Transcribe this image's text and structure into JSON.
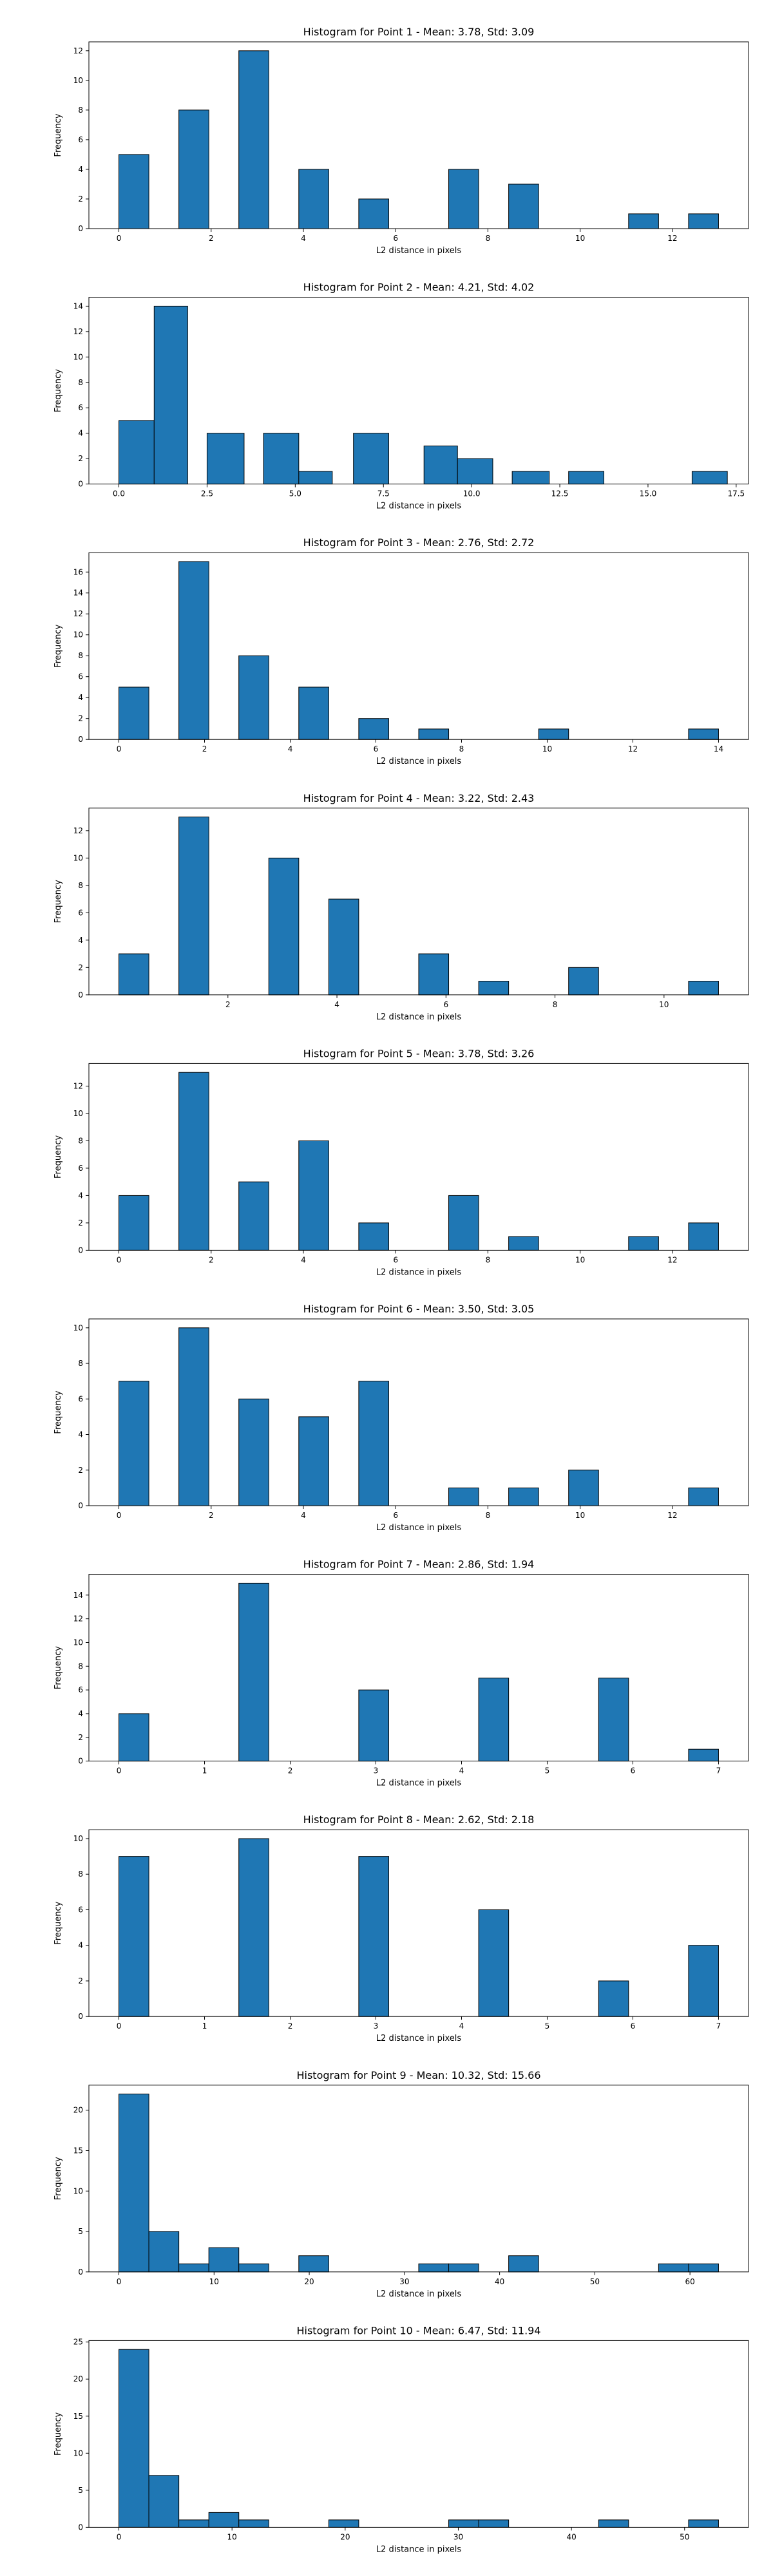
{
  "chart_data": [
    {
      "type": "bar",
      "title": "Histogram for Point 1 - Mean: 3.78, Std: 3.09",
      "xlabel": "L2 distance in pixels",
      "ylabel": "Frequency",
      "xlim": [
        -0.65,
        13.65
      ],
      "ylim": [
        0,
        12.6
      ],
      "xticks": [
        {
          "v": 0,
          "label": "0"
        },
        {
          "v": 2,
          "label": "2"
        },
        {
          "v": 4,
          "label": "4"
        },
        {
          "v": 6,
          "label": "6"
        },
        {
          "v": 8,
          "label": "8"
        },
        {
          "v": 10,
          "label": "10"
        },
        {
          "v": 12,
          "label": "12"
        }
      ],
      "yticks": [
        {
          "v": 0,
          "label": "0"
        },
        {
          "v": 2,
          "label": "2"
        },
        {
          "v": 4,
          "label": "4"
        },
        {
          "v": 6,
          "label": "6"
        },
        {
          "v": 8,
          "label": "8"
        },
        {
          "v": 10,
          "label": "10"
        },
        {
          "v": 12,
          "label": "12"
        }
      ],
      "bins": [
        {
          "x0": 0.0,
          "x1": 0.65,
          "count": 5
        },
        {
          "x0": 1.3,
          "x1": 1.95,
          "count": 8
        },
        {
          "x0": 2.6,
          "x1": 3.25,
          "count": 12
        },
        {
          "x0": 3.9,
          "x1": 4.55,
          "count": 4
        },
        {
          "x0": 5.2,
          "x1": 5.85,
          "count": 2
        },
        {
          "x0": 7.15,
          "x1": 7.8,
          "count": 4
        },
        {
          "x0": 8.45,
          "x1": 9.1,
          "count": 3
        },
        {
          "x0": 11.05,
          "x1": 11.7,
          "count": 1
        },
        {
          "x0": 12.35,
          "x1": 13.0,
          "count": 1
        }
      ]
    },
    {
      "type": "bar",
      "title": "Histogram for Point 2 - Mean: 4.21, Std: 4.02",
      "xlabel": "L2 distance in pixels",
      "ylabel": "Frequency",
      "xlim": [
        -0.85,
        17.85
      ],
      "ylim": [
        0,
        14.7
      ],
      "xticks": [
        {
          "v": 0,
          "label": "0.0"
        },
        {
          "v": 2.5,
          "label": "2.5"
        },
        {
          "v": 5,
          "label": "5.0"
        },
        {
          "v": 7.5,
          "label": "7.5"
        },
        {
          "v": 10,
          "label": "10.0"
        },
        {
          "v": 12.5,
          "label": "12.5"
        },
        {
          "v": 15,
          "label": "15.0"
        },
        {
          "v": 17.5,
          "label": "17.5"
        }
      ],
      "yticks": [
        {
          "v": 0,
          "label": "0"
        },
        {
          "v": 2,
          "label": "2"
        },
        {
          "v": 4,
          "label": "4"
        },
        {
          "v": 6,
          "label": "6"
        },
        {
          "v": 8,
          "label": "8"
        },
        {
          "v": 10,
          "label": "10"
        },
        {
          "v": 12,
          "label": "12"
        },
        {
          "v": 14,
          "label": "14"
        }
      ],
      "bins": [
        {
          "x0": 0.0,
          "x1": 1.0,
          "count": 5
        },
        {
          "x0": 1.0,
          "x1": 1.95,
          "count": 14
        },
        {
          "x0": 2.5,
          "x1": 3.55,
          "count": 4
        },
        {
          "x0": 4.1,
          "x1": 5.1,
          "count": 4
        },
        {
          "x0": 5.1,
          "x1": 6.05,
          "count": 1
        },
        {
          "x0": 6.65,
          "x1": 7.65,
          "count": 4
        },
        {
          "x0": 8.65,
          "x1": 9.6,
          "count": 3
        },
        {
          "x0": 9.6,
          "x1": 10.6,
          "count": 2
        },
        {
          "x0": 11.15,
          "x1": 12.2,
          "count": 1
        },
        {
          "x0": 12.75,
          "x1": 13.75,
          "count": 1
        },
        {
          "x0": 16.25,
          "x1": 17.25,
          "count": 1
        }
      ]
    },
    {
      "type": "bar",
      "title": "Histogram for Point 3 - Mean: 2.76, Std: 2.72",
      "xlabel": "L2 distance in pixels",
      "ylabel": "Frequency",
      "xlim": [
        -0.7,
        14.7
      ],
      "ylim": [
        0,
        17.85
      ],
      "xticks": [
        {
          "v": 0,
          "label": "0"
        },
        {
          "v": 2,
          "label": "2"
        },
        {
          "v": 4,
          "label": "4"
        },
        {
          "v": 6,
          "label": "6"
        },
        {
          "v": 8,
          "label": "8"
        },
        {
          "v": 10,
          "label": "10"
        },
        {
          "v": 12,
          "label": "12"
        },
        {
          "v": 14,
          "label": "14"
        }
      ],
      "yticks": [
        {
          "v": 0,
          "label": "0"
        },
        {
          "v": 2,
          "label": "2"
        },
        {
          "v": 4,
          "label": "4"
        },
        {
          "v": 6,
          "label": "6"
        },
        {
          "v": 8,
          "label": "8"
        },
        {
          "v": 10,
          "label": "10"
        },
        {
          "v": 12,
          "label": "12"
        },
        {
          "v": 14,
          "label": "14"
        },
        {
          "v": 16,
          "label": "16"
        }
      ],
      "bins": [
        {
          "x0": 0.0,
          "x1": 0.7,
          "count": 5
        },
        {
          "x0": 1.4,
          "x1": 2.1,
          "count": 17
        },
        {
          "x0": 2.8,
          "x1": 3.5,
          "count": 8
        },
        {
          "x0": 4.2,
          "x1": 4.9,
          "count": 5
        },
        {
          "x0": 5.6,
          "x1": 6.3,
          "count": 2
        },
        {
          "x0": 7.0,
          "x1": 7.7,
          "count": 1
        },
        {
          "x0": 9.8,
          "x1": 10.5,
          "count": 1
        },
        {
          "x0": 13.3,
          "x1": 14.0,
          "count": 1
        }
      ]
    },
    {
      "type": "bar",
      "title": "Histogram for Point 4 - Mean: 3.22, Std: 2.43",
      "xlabel": "L2 distance in pixels",
      "ylabel": "Frequency",
      "xlim": [
        -0.55,
        11.55
      ],
      "ylim": [
        0,
        13.65
      ],
      "xticks": [
        {
          "v": 2,
          "label": "2"
        },
        {
          "v": 4,
          "label": "4"
        },
        {
          "v": 6,
          "label": "6"
        },
        {
          "v": 8,
          "label": "8"
        },
        {
          "v": 10,
          "label": "10"
        }
      ],
      "yticks": [
        {
          "v": 0,
          "label": "0"
        },
        {
          "v": 2,
          "label": "2"
        },
        {
          "v": 4,
          "label": "4"
        },
        {
          "v": 6,
          "label": "6"
        },
        {
          "v": 8,
          "label": "8"
        },
        {
          "v": 10,
          "label": "10"
        },
        {
          "v": 12,
          "label": "12"
        }
      ],
      "bins": [
        {
          "x0": 0.0,
          "x1": 0.55,
          "count": 3
        },
        {
          "x0": 1.1,
          "x1": 1.65,
          "count": 13
        },
        {
          "x0": 2.75,
          "x1": 3.3,
          "count": 10
        },
        {
          "x0": 3.85,
          "x1": 4.4,
          "count": 7
        },
        {
          "x0": 5.5,
          "x1": 6.05,
          "count": 3
        },
        {
          "x0": 6.6,
          "x1": 7.15,
          "count": 1
        },
        {
          "x0": 8.25,
          "x1": 8.8,
          "count": 2
        },
        {
          "x0": 10.45,
          "x1": 11.0,
          "count": 1
        }
      ]
    },
    {
      "type": "bar",
      "title": "Histogram for Point 5 - Mean: 3.78, Std: 3.26",
      "xlabel": "L2 distance in pixels",
      "ylabel": "Frequency",
      "xlim": [
        -0.65,
        13.65
      ],
      "ylim": [
        0,
        13.65
      ],
      "xticks": [
        {
          "v": 0,
          "label": "0"
        },
        {
          "v": 2,
          "label": "2"
        },
        {
          "v": 4,
          "label": "4"
        },
        {
          "v": 6,
          "label": "6"
        },
        {
          "v": 8,
          "label": "8"
        },
        {
          "v": 10,
          "label": "10"
        },
        {
          "v": 12,
          "label": "12"
        }
      ],
      "yticks": [
        {
          "v": 0,
          "label": "0"
        },
        {
          "v": 2,
          "label": "2"
        },
        {
          "v": 4,
          "label": "4"
        },
        {
          "v": 6,
          "label": "6"
        },
        {
          "v": 8,
          "label": "8"
        },
        {
          "v": 10,
          "label": "10"
        },
        {
          "v": 12,
          "label": "12"
        }
      ],
      "bins": [
        {
          "x0": 0.0,
          "x1": 0.65,
          "count": 4
        },
        {
          "x0": 1.3,
          "x1": 1.95,
          "count": 13
        },
        {
          "x0": 2.6,
          "x1": 3.25,
          "count": 5
        },
        {
          "x0": 3.9,
          "x1": 4.55,
          "count": 8
        },
        {
          "x0": 5.2,
          "x1": 5.85,
          "count": 2
        },
        {
          "x0": 7.15,
          "x1": 7.8,
          "count": 4
        },
        {
          "x0": 8.45,
          "x1": 9.1,
          "count": 1
        },
        {
          "x0": 11.05,
          "x1": 11.7,
          "count": 1
        },
        {
          "x0": 12.35,
          "x1": 13.0,
          "count": 2
        }
      ]
    },
    {
      "type": "bar",
      "title": "Histogram for Point 6 - Mean: 3.50, Std: 3.05",
      "xlabel": "L2 distance in pixels",
      "ylabel": "Frequency",
      "xlim": [
        -0.65,
        13.65
      ],
      "ylim": [
        0,
        10.5
      ],
      "xticks": [
        {
          "v": 0,
          "label": "0"
        },
        {
          "v": 2,
          "label": "2"
        },
        {
          "v": 4,
          "label": "4"
        },
        {
          "v": 6,
          "label": "6"
        },
        {
          "v": 8,
          "label": "8"
        },
        {
          "v": 10,
          "label": "10"
        },
        {
          "v": 12,
          "label": "12"
        }
      ],
      "yticks": [
        {
          "v": 0,
          "label": "0"
        },
        {
          "v": 2,
          "label": "2"
        },
        {
          "v": 4,
          "label": "4"
        },
        {
          "v": 6,
          "label": "6"
        },
        {
          "v": 8,
          "label": "8"
        },
        {
          "v": 10,
          "label": "10"
        }
      ],
      "bins": [
        {
          "x0": 0.0,
          "x1": 0.65,
          "count": 7
        },
        {
          "x0": 1.3,
          "x1": 1.95,
          "count": 10
        },
        {
          "x0": 2.6,
          "x1": 3.25,
          "count": 6
        },
        {
          "x0": 3.9,
          "x1": 4.55,
          "count": 5
        },
        {
          "x0": 5.2,
          "x1": 5.85,
          "count": 7
        },
        {
          "x0": 7.15,
          "x1": 7.8,
          "count": 1
        },
        {
          "x0": 8.45,
          "x1": 9.1,
          "count": 1
        },
        {
          "x0": 9.75,
          "x1": 10.4,
          "count": 2
        },
        {
          "x0": 12.35,
          "x1": 13.0,
          "count": 1
        }
      ]
    },
    {
      "type": "bar",
      "title": "Histogram for Point 7 - Mean: 2.86, Std: 1.94",
      "xlabel": "L2 distance in pixels",
      "ylabel": "Frequency",
      "xlim": [
        -0.35,
        7.35
      ],
      "ylim": [
        0,
        15.75
      ],
      "xticks": [
        {
          "v": 0,
          "label": "0"
        },
        {
          "v": 1,
          "label": "1"
        },
        {
          "v": 2,
          "label": "2"
        },
        {
          "v": 3,
          "label": "3"
        },
        {
          "v": 4,
          "label": "4"
        },
        {
          "v": 5,
          "label": "5"
        },
        {
          "v": 6,
          "label": "6"
        },
        {
          "v": 7,
          "label": "7"
        }
      ],
      "yticks": [
        {
          "v": 0,
          "label": "0"
        },
        {
          "v": 2,
          "label": "2"
        },
        {
          "v": 4,
          "label": "4"
        },
        {
          "v": 6,
          "label": "6"
        },
        {
          "v": 8,
          "label": "8"
        },
        {
          "v": 10,
          "label": "10"
        },
        {
          "v": 12,
          "label": "12"
        },
        {
          "v": 14,
          "label": "14"
        }
      ],
      "bins": [
        {
          "x0": 0.0,
          "x1": 0.35,
          "count": 4
        },
        {
          "x0": 1.4,
          "x1": 1.75,
          "count": 15
        },
        {
          "x0": 2.8,
          "x1": 3.15,
          "count": 6
        },
        {
          "x0": 4.2,
          "x1": 4.55,
          "count": 7
        },
        {
          "x0": 5.6,
          "x1": 5.95,
          "count": 7
        },
        {
          "x0": 6.65,
          "x1": 7.0,
          "count": 1
        }
      ]
    },
    {
      "type": "bar",
      "title": "Histogram for Point 8 - Mean: 2.62, Std: 2.18",
      "xlabel": "L2 distance in pixels",
      "ylabel": "Frequency",
      "xlim": [
        -0.35,
        7.35
      ],
      "ylim": [
        0,
        10.5
      ],
      "xticks": [
        {
          "v": 0,
          "label": "0"
        },
        {
          "v": 1,
          "label": "1"
        },
        {
          "v": 2,
          "label": "2"
        },
        {
          "v": 3,
          "label": "3"
        },
        {
          "v": 4,
          "label": "4"
        },
        {
          "v": 5,
          "label": "5"
        },
        {
          "v": 6,
          "label": "6"
        },
        {
          "v": 7,
          "label": "7"
        }
      ],
      "yticks": [
        {
          "v": 0,
          "label": "0"
        },
        {
          "v": 2,
          "label": "2"
        },
        {
          "v": 4,
          "label": "4"
        },
        {
          "v": 6,
          "label": "6"
        },
        {
          "v": 8,
          "label": "8"
        },
        {
          "v": 10,
          "label": "10"
        }
      ],
      "bins": [
        {
          "x0": 0.0,
          "x1": 0.35,
          "count": 9
        },
        {
          "x0": 1.4,
          "x1": 1.75,
          "count": 10
        },
        {
          "x0": 2.8,
          "x1": 3.15,
          "count": 9
        },
        {
          "x0": 4.2,
          "x1": 4.55,
          "count": 6
        },
        {
          "x0": 5.6,
          "x1": 5.95,
          "count": 2
        },
        {
          "x0": 6.65,
          "x1": 7.0,
          "count": 4
        }
      ]
    },
    {
      "type": "bar",
      "title": "Histogram for Point 9 - Mean: 10.32, Std: 15.66",
      "xlabel": "L2 distance in pixels",
      "ylabel": "Frequency",
      "xlim": [
        -3.15,
        66.15
      ],
      "ylim": [
        0,
        23.1
      ],
      "xticks": [
        {
          "v": 0,
          "label": "0"
        },
        {
          "v": 10,
          "label": "10"
        },
        {
          "v": 20,
          "label": "20"
        },
        {
          "v": 30,
          "label": "30"
        },
        {
          "v": 40,
          "label": "40"
        },
        {
          "v": 50,
          "label": "50"
        },
        {
          "v": 60,
          "label": "60"
        }
      ],
      "yticks": [
        {
          "v": 0,
          "label": "0"
        },
        {
          "v": 5,
          "label": "5"
        },
        {
          "v": 10,
          "label": "10"
        },
        {
          "v": 15,
          "label": "15"
        },
        {
          "v": 20,
          "label": "20"
        }
      ],
      "bins": [
        {
          "x0": 0.0,
          "x1": 3.15,
          "count": 22
        },
        {
          "x0": 3.15,
          "x1": 6.3,
          "count": 5
        },
        {
          "x0": 6.3,
          "x1": 9.45,
          "count": 1
        },
        {
          "x0": 9.45,
          "x1": 12.6,
          "count": 3
        },
        {
          "x0": 12.6,
          "x1": 15.75,
          "count": 1
        },
        {
          "x0": 18.9,
          "x1": 22.05,
          "count": 2
        },
        {
          "x0": 31.5,
          "x1": 34.65,
          "count": 1
        },
        {
          "x0": 34.65,
          "x1": 37.8,
          "count": 1
        },
        {
          "x0": 40.95,
          "x1": 44.1,
          "count": 2
        },
        {
          "x0": 56.7,
          "x1": 59.85,
          "count": 1
        },
        {
          "x0": 59.85,
          "x1": 63.0,
          "count": 1
        }
      ]
    },
    {
      "type": "bar",
      "title": "Histogram for Point 10 - Mean: 6.47, Std: 11.94",
      "xlabel": "L2 distance in pixels",
      "ylabel": "Frequency",
      "xlim": [
        -2.65,
        55.65
      ],
      "ylim": [
        0,
        25.2
      ],
      "xticks": [
        {
          "v": 0,
          "label": "0"
        },
        {
          "v": 10,
          "label": "10"
        },
        {
          "v": 20,
          "label": "20"
        },
        {
          "v": 30,
          "label": "30"
        },
        {
          "v": 40,
          "label": "40"
        },
        {
          "v": 50,
          "label": "50"
        }
      ],
      "yticks": [
        {
          "v": 0,
          "label": "0"
        },
        {
          "v": 5,
          "label": "5"
        },
        {
          "v": 10,
          "label": "10"
        },
        {
          "v": 15,
          "label": "15"
        },
        {
          "v": 20,
          "label": "20"
        },
        {
          "v": 25,
          "label": "25"
        }
      ],
      "bins": [
        {
          "x0": 0.0,
          "x1": 2.65,
          "count": 24
        },
        {
          "x0": 2.65,
          "x1": 5.3,
          "count": 7
        },
        {
          "x0": 5.3,
          "x1": 7.95,
          "count": 1
        },
        {
          "x0": 7.95,
          "x1": 10.6,
          "count": 2
        },
        {
          "x0": 10.6,
          "x1": 13.25,
          "count": 1
        },
        {
          "x0": 18.55,
          "x1": 21.2,
          "count": 1
        },
        {
          "x0": 29.15,
          "x1": 31.8,
          "count": 1
        },
        {
          "x0": 31.8,
          "x1": 34.45,
          "count": 1
        },
        {
          "x0": 42.4,
          "x1": 45.05,
          "count": 1
        },
        {
          "x0": 50.35,
          "x1": 53.0,
          "count": 1
        }
      ]
    }
  ]
}
